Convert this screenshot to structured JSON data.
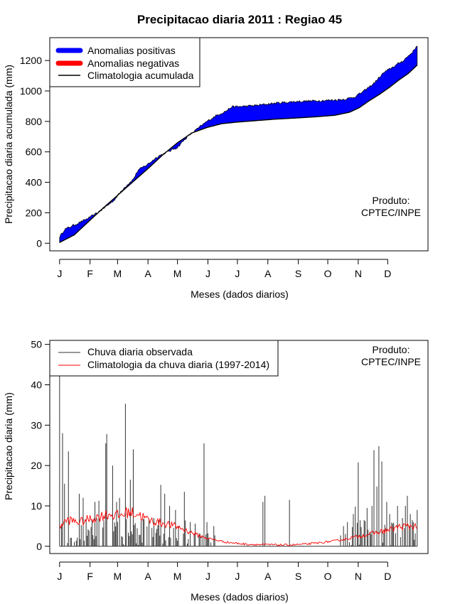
{
  "title": "Precipitacao diaria 2011 : Regiao 45",
  "chart_data": [
    {
      "type": "area",
      "id": "top",
      "xlabel": "Meses (dados diarios)",
      "ylabel": "Precipitacao diaria acumulada (mm)",
      "x_ticks": [
        "J",
        "F",
        "M",
        "A",
        "M",
        "J",
        "J",
        "A",
        "S",
        "O",
        "N",
        "D"
      ],
      "y_ticks": [
        0,
        200,
        400,
        600,
        800,
        1000,
        1200
      ],
      "ylim": [
        -50,
        1350
      ],
      "xlim_days": [
        -10,
        375
      ],
      "legend": {
        "position": "top-left",
        "entries": [
          "Anomalias positivas",
          "Anomalias negativas",
          "Climatologia acumulada"
        ],
        "colors": [
          "#0000ff",
          "#ff0000",
          "#000000"
        ]
      },
      "annotation": [
        "Produto:",
        "CPTEC/INPE"
      ],
      "colors": {
        "positive": "#0000ff",
        "negative": "#ff0000",
        "climatology": "#000000"
      },
      "observed_keypoints": [
        [
          0,
          40
        ],
        [
          5,
          90
        ],
        [
          15,
          120
        ],
        [
          25,
          150
        ],
        [
          35,
          185
        ],
        [
          45,
          230
        ],
        [
          55,
          280
        ],
        [
          65,
          360
        ],
        [
          75,
          420
        ],
        [
          80,
          480
        ],
        [
          90,
          520
        ],
        [
          100,
          570
        ],
        [
          110,
          600
        ],
        [
          120,
          630
        ],
        [
          130,
          700
        ],
        [
          140,
          750
        ],
        [
          150,
          800
        ],
        [
          160,
          840
        ],
        [
          170,
          870
        ],
        [
          175,
          895
        ],
        [
          190,
          900
        ],
        [
          200,
          905
        ],
        [
          220,
          920
        ],
        [
          240,
          930
        ],
        [
          260,
          935
        ],
        [
          280,
          940
        ],
        [
          290,
          945
        ],
        [
          300,
          960
        ],
        [
          310,
          1000
        ],
        [
          320,
          1050
        ],
        [
          330,
          1120
        ],
        [
          340,
          1160
        ],
        [
          350,
          1200
        ],
        [
          360,
          1260
        ],
        [
          364,
          1300
        ]
      ],
      "climatology_keypoints": [
        [
          0,
          5
        ],
        [
          15,
          55
        ],
        [
          30,
          145
        ],
        [
          45,
          235
        ],
        [
          60,
          320
        ],
        [
          75,
          405
        ],
        [
          90,
          490
        ],
        [
          105,
          580
        ],
        [
          120,
          660
        ],
        [
          135,
          725
        ],
        [
          150,
          760
        ],
        [
          165,
          785
        ],
        [
          180,
          795
        ],
        [
          200,
          805
        ],
        [
          220,
          815
        ],
        [
          240,
          822
        ],
        [
          260,
          830
        ],
        [
          280,
          840
        ],
        [
          295,
          860
        ],
        [
          305,
          890
        ],
        [
          315,
          935
        ],
        [
          325,
          975
        ],
        [
          335,
          1020
        ],
        [
          345,
          1070
        ],
        [
          355,
          1115
        ],
        [
          364,
          1170
        ]
      ]
    },
    {
      "type": "bar",
      "id": "bottom",
      "xlabel": "Meses (dados diarios)",
      "ylabel": "Precipitacao diaria (mm)",
      "x_ticks": [
        "J",
        "F",
        "M",
        "A",
        "M",
        "J",
        "J",
        "A",
        "S",
        "O",
        "N",
        "D"
      ],
      "y_ticks": [
        0,
        10,
        20,
        30,
        40,
        50
      ],
      "ylim": [
        -1.8,
        51
      ],
      "xlim_days": [
        -10,
        375
      ],
      "legend": {
        "position": "top-left",
        "entries": [
          "Chuva diaria observada",
          "Climatologia da chuva diaria (1997-2014)"
        ],
        "colors": [
          "#333333",
          "#ff0000"
        ]
      },
      "annotation": [
        "Produto:",
        "CPTEC/INPE"
      ],
      "colors": {
        "observed": "#333333",
        "climatology": "#ff0000"
      },
      "observed_peaks": [
        [
          0,
          43
        ],
        [
          3,
          28
        ],
        [
          5,
          15.5
        ],
        [
          9,
          23.5
        ],
        [
          20,
          13
        ],
        [
          24,
          12
        ],
        [
          36,
          11
        ],
        [
          40,
          11.3
        ],
        [
          47,
          25.5
        ],
        [
          48,
          27.8
        ],
        [
          54,
          20
        ],
        [
          58,
          11
        ],
        [
          61,
          12
        ],
        [
          67,
          35.3
        ],
        [
          72,
          16.5
        ],
        [
          75,
          24
        ],
        [
          96,
          7
        ],
        [
          103,
          15.2
        ],
        [
          107,
          13
        ],
        [
          112,
          10
        ],
        [
          118,
          9
        ],
        [
          127,
          13.5
        ],
        [
          133,
          6
        ],
        [
          147,
          25.5
        ],
        [
          150,
          6
        ],
        [
          157,
          5
        ],
        [
          207,
          11
        ],
        [
          209,
          12.5
        ],
        [
          234,
          11.5
        ],
        [
          289,
          5
        ],
        [
          293,
          6
        ],
        [
          299,
          8
        ],
        [
          301,
          9.8
        ],
        [
          304,
          20.8
        ],
        [
          310,
          6.5
        ],
        [
          313,
          9.5
        ],
        [
          318,
          10
        ],
        [
          320,
          23.8
        ],
        [
          323,
          14.8
        ],
        [
          325,
          24.8
        ],
        [
          328,
          21
        ],
        [
          333,
          11
        ],
        [
          336,
          8
        ],
        [
          344,
          10
        ],
        [
          349,
          7
        ],
        [
          352,
          10
        ],
        [
          354,
          12.5
        ],
        [
          357,
          8
        ],
        [
          360,
          6
        ],
        [
          364,
          9
        ]
      ],
      "climatology_keypoints": [
        [
          0,
          5
        ],
        [
          8,
          6.5
        ],
        [
          20,
          6
        ],
        [
          35,
          7
        ],
        [
          50,
          8
        ],
        [
          60,
          7.5
        ],
        [
          70,
          8.5
        ],
        [
          80,
          8
        ],
        [
          90,
          6.5
        ],
        [
          100,
          6
        ],
        [
          110,
          5.5
        ],
        [
          120,
          4.8
        ],
        [
          130,
          3.8
        ],
        [
          140,
          2.8
        ],
        [
          150,
          2
        ],
        [
          160,
          1.5
        ],
        [
          170,
          1
        ],
        [
          190,
          0.5
        ],
        [
          210,
          0.4
        ],
        [
          230,
          0.3
        ],
        [
          250,
          0.5
        ],
        [
          270,
          1
        ],
        [
          285,
          1.5
        ],
        [
          295,
          2
        ],
        [
          305,
          2.5
        ],
        [
          315,
          3
        ],
        [
          325,
          3.5
        ],
        [
          335,
          4
        ],
        [
          345,
          4.8
        ],
        [
          355,
          5
        ],
        [
          364,
          5
        ]
      ]
    }
  ]
}
